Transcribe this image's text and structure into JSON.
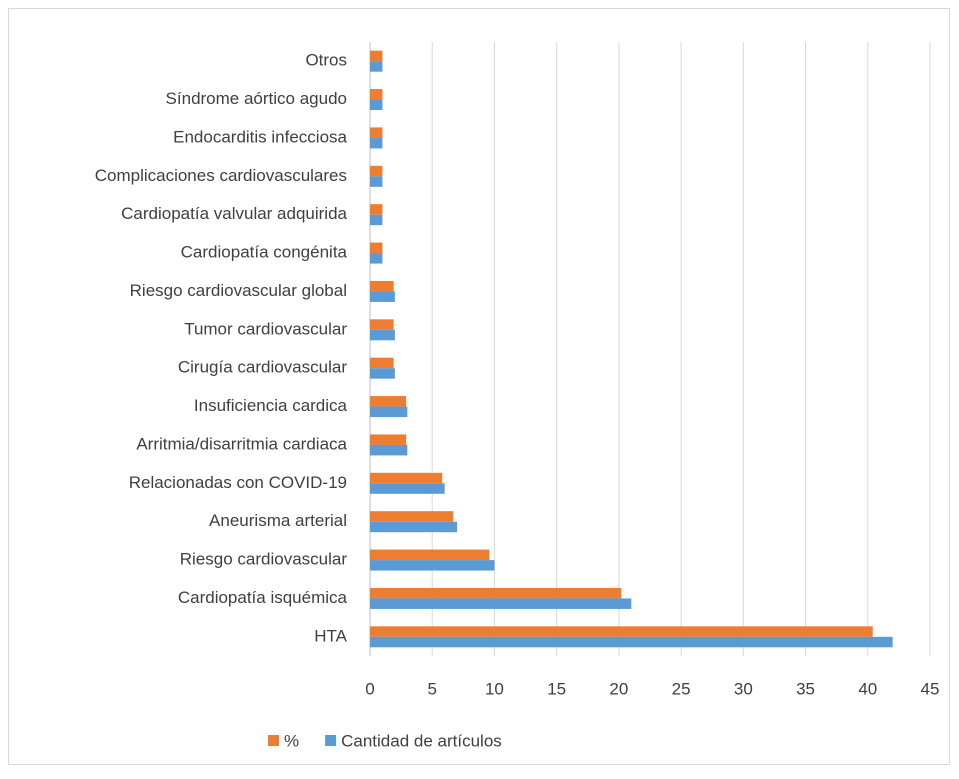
{
  "chart_data": {
    "type": "bar",
    "orientation": "horizontal",
    "categories": [
      "HTA",
      "Cardiopatía isquémica",
      "Riesgo cardiovascular",
      "Aneurisma arterial",
      "Relacionadas con COVID-19",
      "Arritmia/disarritmia cardiaca",
      "Insuficiencia cardica",
      "Cirugía cardiovascular",
      "Tumor cardiovascular",
      "Riesgo cardiovascular global",
      "Cardiopatía congénita",
      "Cardiopatía valvular adquirida",
      "Complicaciones cardiovasculares",
      "Endocarditis infecciosa",
      "Síndrome aórtico agudo",
      "Otros"
    ],
    "series": [
      {
        "name": "%",
        "color": "#ed7d31",
        "values": [
          40.4,
          20.2,
          9.6,
          6.7,
          5.8,
          2.9,
          2.9,
          1.9,
          1.9,
          1.9,
          1.0,
          1.0,
          1.0,
          1.0,
          1.0,
          1.0
        ]
      },
      {
        "name": "Cantidad de artículos",
        "color": "#5b9bd5",
        "values": [
          42,
          21,
          10,
          7,
          6,
          3,
          3,
          2,
          2,
          2,
          1,
          1,
          1,
          1,
          1,
          1
        ]
      }
    ],
    "xlim": [
      0,
      45
    ],
    "xticks": [
      0,
      5,
      10,
      15,
      20,
      25,
      30,
      35,
      40,
      45
    ],
    "grid": true,
    "legend": "bottom"
  }
}
